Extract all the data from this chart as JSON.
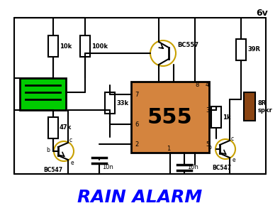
{
  "title": "RAIN ALARM",
  "title_color": "#0000FF",
  "title_fontsize": 18,
  "bg_color": "#FFFFFF",
  "supply_label": "6v",
  "component_555_color": "#D4843E",
  "component_555_text": "555",
  "sensor_color": "#00CC00",
  "wire_color": "#000000",
  "resistor_color": "#FFFFFF",
  "transistor_circle_color": "#C8A000",
  "speaker_color": "#8B4513"
}
